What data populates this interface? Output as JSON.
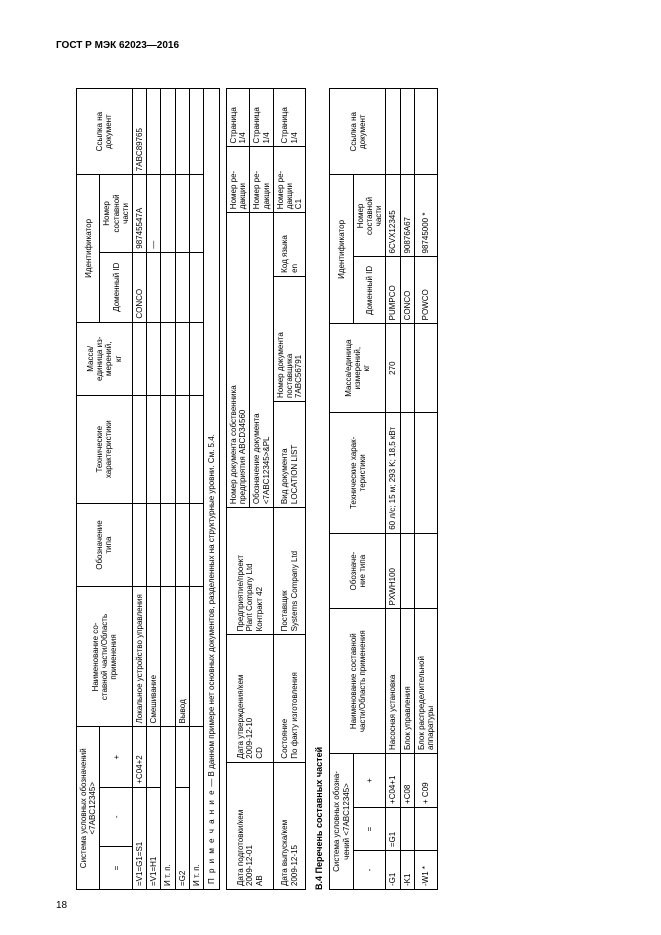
{
  "header": {
    "code": "ГОСТ Р МЭК 62023—2016"
  },
  "pageNumber": "18",
  "table1": {
    "headers": {
      "sys": "Система условных обозначений\n<7ABC12345>",
      "eq": "=",
      "dash": "-",
      "plus": "+",
      "name": "Наименование со-\nставной части/Область\nприменения",
      "type": "Обозначение\nтипа",
      "tech": "Технические\nхарактеристики",
      "mass": "Масса/\nединица из-\nмерений,\nкг",
      "id": "Идентификатор",
      "domain": "Доменный ID",
      "part": "Номер\nсоставной\nчасти",
      "ref": "Ссылка на\nдокумент"
    },
    "rows": [
      {
        "eq": "=V1=G1=S1",
        "dash": "",
        "plus": "+C04+2",
        "name": "Локальное устройство управления",
        "type": "",
        "tech": "",
        "mass": "",
        "domain": "CONCO",
        "part": "98745547A",
        "ref": "7ABC89765"
      },
      {
        "eq": "=V1=H1",
        "dash": "",
        "plus": "",
        "name": "Смешивание",
        "type": "",
        "tech": "",
        "mass": "",
        "domain": "",
        "part": "—",
        "ref": ""
      },
      {
        "eq": "И т. п.",
        "dash": "",
        "plus": "",
        "name": "",
        "type": "",
        "tech": "",
        "mass": "",
        "domain": "",
        "part": "",
        "ref": ""
      },
      {
        "eq": "=G2",
        "dash": "",
        "plus": "",
        "name": "Вывод",
        "type": "",
        "tech": "",
        "mass": "",
        "domain": "",
        "part": "",
        "ref": ""
      },
      {
        "eq": "И т. п.",
        "dash": "",
        "plus": "",
        "name": "",
        "type": "",
        "tech": "",
        "mass": "",
        "domain": "",
        "part": "",
        "ref": ""
      }
    ],
    "noteLabel": "П р и м е ч а н и е",
    "noteText": " — В данном примере нет основных документов, разделенных на структурные уровни. См. 5.4."
  },
  "table2": {
    "rows": [
      {
        "a": "Дата подготовки/кем\n2009-12-01\nAB",
        "b": "Дата утверждения/кем\n2009-12-10\nCD",
        "c": "Предприятие/проект\nPlant Company Ltd\nКонтракт 42",
        "d": "Номер документа собственника\nпредприятия ABCD34560",
        "e": "Номер ре-\nдакции",
        "f": "Страница\n1/4"
      },
      {
        "a": "",
        "b": "",
        "c": "",
        "d": "Обозначение документа\n<7ABC12345>&PL",
        "e": "Номер ре-\nдакции",
        "f": "Страница\n1/4"
      },
      {
        "a": "Дата выпуска/кем\n2009-12-15",
        "b": "Состояние\nПо факту изготовления",
        "c": "Поставщик\nSystems Company Ltd",
        "d1": "Номер документа\nпоставщика\n7ABC56791",
        "d2": "Вид документа\nLOCATION LIST",
        "d3": "Код языка\nen",
        "e": "Номер ре-\nдакции\nC1",
        "f": "Страница\n1/4"
      }
    ]
  },
  "sectionTitle": "B.4 Перечень составных частей",
  "table3": {
    "headers": {
      "sys": "Система условных обозна-\nчений <7ABC12345>",
      "eq": "=",
      "dash": "-",
      "plus": "+",
      "name": "Наименование составной\nчасти/Область применения",
      "type": "Обозначе-\nние типа",
      "tech": "Технические харак-\nтеристики",
      "mass": "Масса/единица\nизмерений,\nкг",
      "id": "Идентификатор",
      "domain": "Доменный ID",
      "part": "Номер\nсоставной\nчасти",
      "ref": "Ссылка на\nдокумент"
    },
    "rows": [
      {
        "dash": "-G1",
        "eq": "=G1",
        "plus": "+C04+1",
        "name": "Насосная установка",
        "type": "PXWH100",
        "tech": "60 л/с; 15 м; 293 K; 18,5 кВт",
        "mass": "270",
        "domain": "PUMPCO",
        "part": "6CVX12345",
        "ref": ""
      },
      {
        "dash": "-K1",
        "eq": "",
        "plus": "+C08",
        "name": "Блок управления",
        "type": "",
        "tech": "",
        "mass": "",
        "domain": "CONCO",
        "part": "90876A67",
        "ref": ""
      },
      {
        "dash": "-W1 *",
        "eq": "",
        "plus": "+ C09",
        "name": "Блок распределительной аппаратуры",
        "type": "",
        "tech": "",
        "mass": "",
        "domain": "POWCO",
        "part": "98745000 *",
        "ref": ""
      }
    ]
  }
}
